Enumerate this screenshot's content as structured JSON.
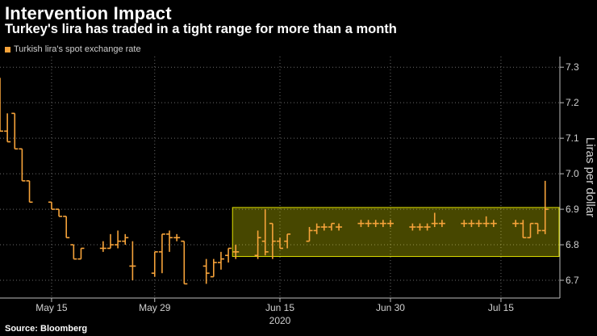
{
  "header": {
    "title": "Intervention Impact",
    "subtitle": "Turkey's lira has traded in a tight range for more than a month"
  },
  "source": "Source: Bloomberg",
  "chart_data": {
    "type": "line",
    "title": "Intervention Impact",
    "subtitle": "Turkey's lira has traded in a tight range for more than a month",
    "legend": [
      {
        "name": "Turkish lira's spot exchange rate",
        "color": "#f6a33a"
      }
    ],
    "ylabel": "Liras per dollar",
    "xlabel": "2020",
    "ylim": [
      6.65,
      7.33
    ],
    "y_ticks": [
      6.7,
      6.8,
      6.9,
      7.0,
      7.1,
      7.2,
      7.3
    ],
    "y_tick_labels": [
      "6.7",
      "6.8",
      "6.9",
      "7.0",
      "7.1",
      "7.2",
      "7.3"
    ],
    "x_ticks": [
      {
        "label": "May 15",
        "day": 11
      },
      {
        "label": "May 29",
        "day": 25
      },
      {
        "label": "Jun 15",
        "day": 42
      },
      {
        "label": "Jun 30",
        "day": 57
      },
      {
        "label": "Jul 15",
        "day": 72
      }
    ],
    "x_year_label": "2020",
    "x_year_day": 42,
    "xlim": [
      4,
      80
    ],
    "highlight_range": {
      "y_low": 6.767,
      "y_high": 6.905,
      "day_start": 36,
      "day_end": 80,
      "color": "#ffff00"
    },
    "series": [
      {
        "name": "Turkish lira's spot exchange rate",
        "color": "#f6a33a",
        "day": [
          4,
          5,
          6,
          7,
          8,
          11,
          12,
          13,
          14,
          15,
          18,
          19,
          20,
          21,
          22,
          25,
          26,
          27,
          28,
          29,
          32,
          33,
          34,
          35,
          36,
          39,
          40,
          41,
          42,
          43,
          46,
          47,
          48,
          49,
          50,
          53,
          54,
          55,
          56,
          57,
          60,
          61,
          62,
          63,
          64,
          67,
          68,
          69,
          70,
          71,
          74,
          75,
          76,
          77,
          78
        ],
        "open": [
          7.27,
          7.12,
          7.17,
          7.07,
          6.98,
          6.92,
          6.9,
          6.88,
          6.8,
          6.76,
          6.79,
          6.79,
          6.8,
          6.81,
          6.74,
          6.72,
          6.78,
          6.83,
          6.82,
          6.81,
          6.74,
          6.71,
          6.75,
          6.77,
          6.78,
          6.77,
          6.81,
          6.86,
          6.81,
          6.81,
          6.81,
          6.84,
          6.85,
          6.85,
          6.85,
          6.86,
          6.86,
          6.86,
          6.86,
          6.86,
          6.85,
          6.85,
          6.85,
          6.86,
          6.86,
          6.86,
          6.86,
          6.86,
          6.86,
          6.86,
          6.86,
          6.86,
          6.82,
          6.86,
          6.84
        ],
        "high": [
          7.27,
          7.17,
          7.17,
          7.07,
          6.98,
          6.92,
          6.9,
          6.88,
          6.8,
          6.79,
          6.81,
          6.83,
          6.84,
          6.83,
          6.81,
          6.78,
          6.83,
          6.84,
          6.83,
          6.81,
          6.76,
          6.76,
          6.78,
          6.79,
          6.8,
          6.84,
          6.9,
          6.86,
          6.82,
          6.83,
          6.85,
          6.86,
          6.86,
          6.86,
          6.86,
          6.87,
          6.87,
          6.87,
          6.87,
          6.87,
          6.86,
          6.86,
          6.86,
          6.89,
          6.87,
          6.87,
          6.87,
          6.87,
          6.88,
          6.87,
          6.87,
          6.87,
          6.86,
          6.86,
          6.98
        ],
        "low": [
          7.12,
          7.09,
          7.07,
          6.98,
          6.92,
          6.9,
          6.88,
          6.82,
          6.76,
          6.76,
          6.78,
          6.79,
          6.79,
          6.8,
          6.7,
          6.71,
          6.72,
          6.78,
          6.81,
          6.69,
          6.69,
          6.71,
          6.73,
          6.75,
          6.76,
          6.76,
          6.77,
          6.76,
          6.79,
          6.79,
          6.81,
          6.83,
          6.84,
          6.84,
          6.84,
          6.85,
          6.85,
          6.85,
          6.85,
          6.85,
          6.84,
          6.84,
          6.84,
          6.85,
          6.85,
          6.85,
          6.85,
          6.85,
          6.85,
          6.85,
          6.85,
          6.82,
          6.82,
          6.83,
          6.83
        ],
        "close": [
          7.12,
          7.09,
          7.07,
          6.98,
          6.92,
          6.9,
          6.88,
          6.82,
          6.76,
          6.79,
          6.79,
          6.8,
          6.81,
          6.82,
          6.74,
          6.78,
          6.83,
          6.82,
          6.82,
          6.69,
          6.72,
          6.75,
          6.76,
          6.79,
          6.78,
          6.82,
          6.78,
          6.81,
          6.79,
          6.83,
          6.84,
          6.85,
          6.85,
          6.86,
          6.85,
          6.86,
          6.86,
          6.86,
          6.86,
          6.86,
          6.85,
          6.85,
          6.85,
          6.86,
          6.86,
          6.86,
          6.86,
          6.86,
          6.86,
          6.86,
          6.86,
          6.82,
          6.86,
          6.84,
          6.9
        ]
      }
    ]
  }
}
